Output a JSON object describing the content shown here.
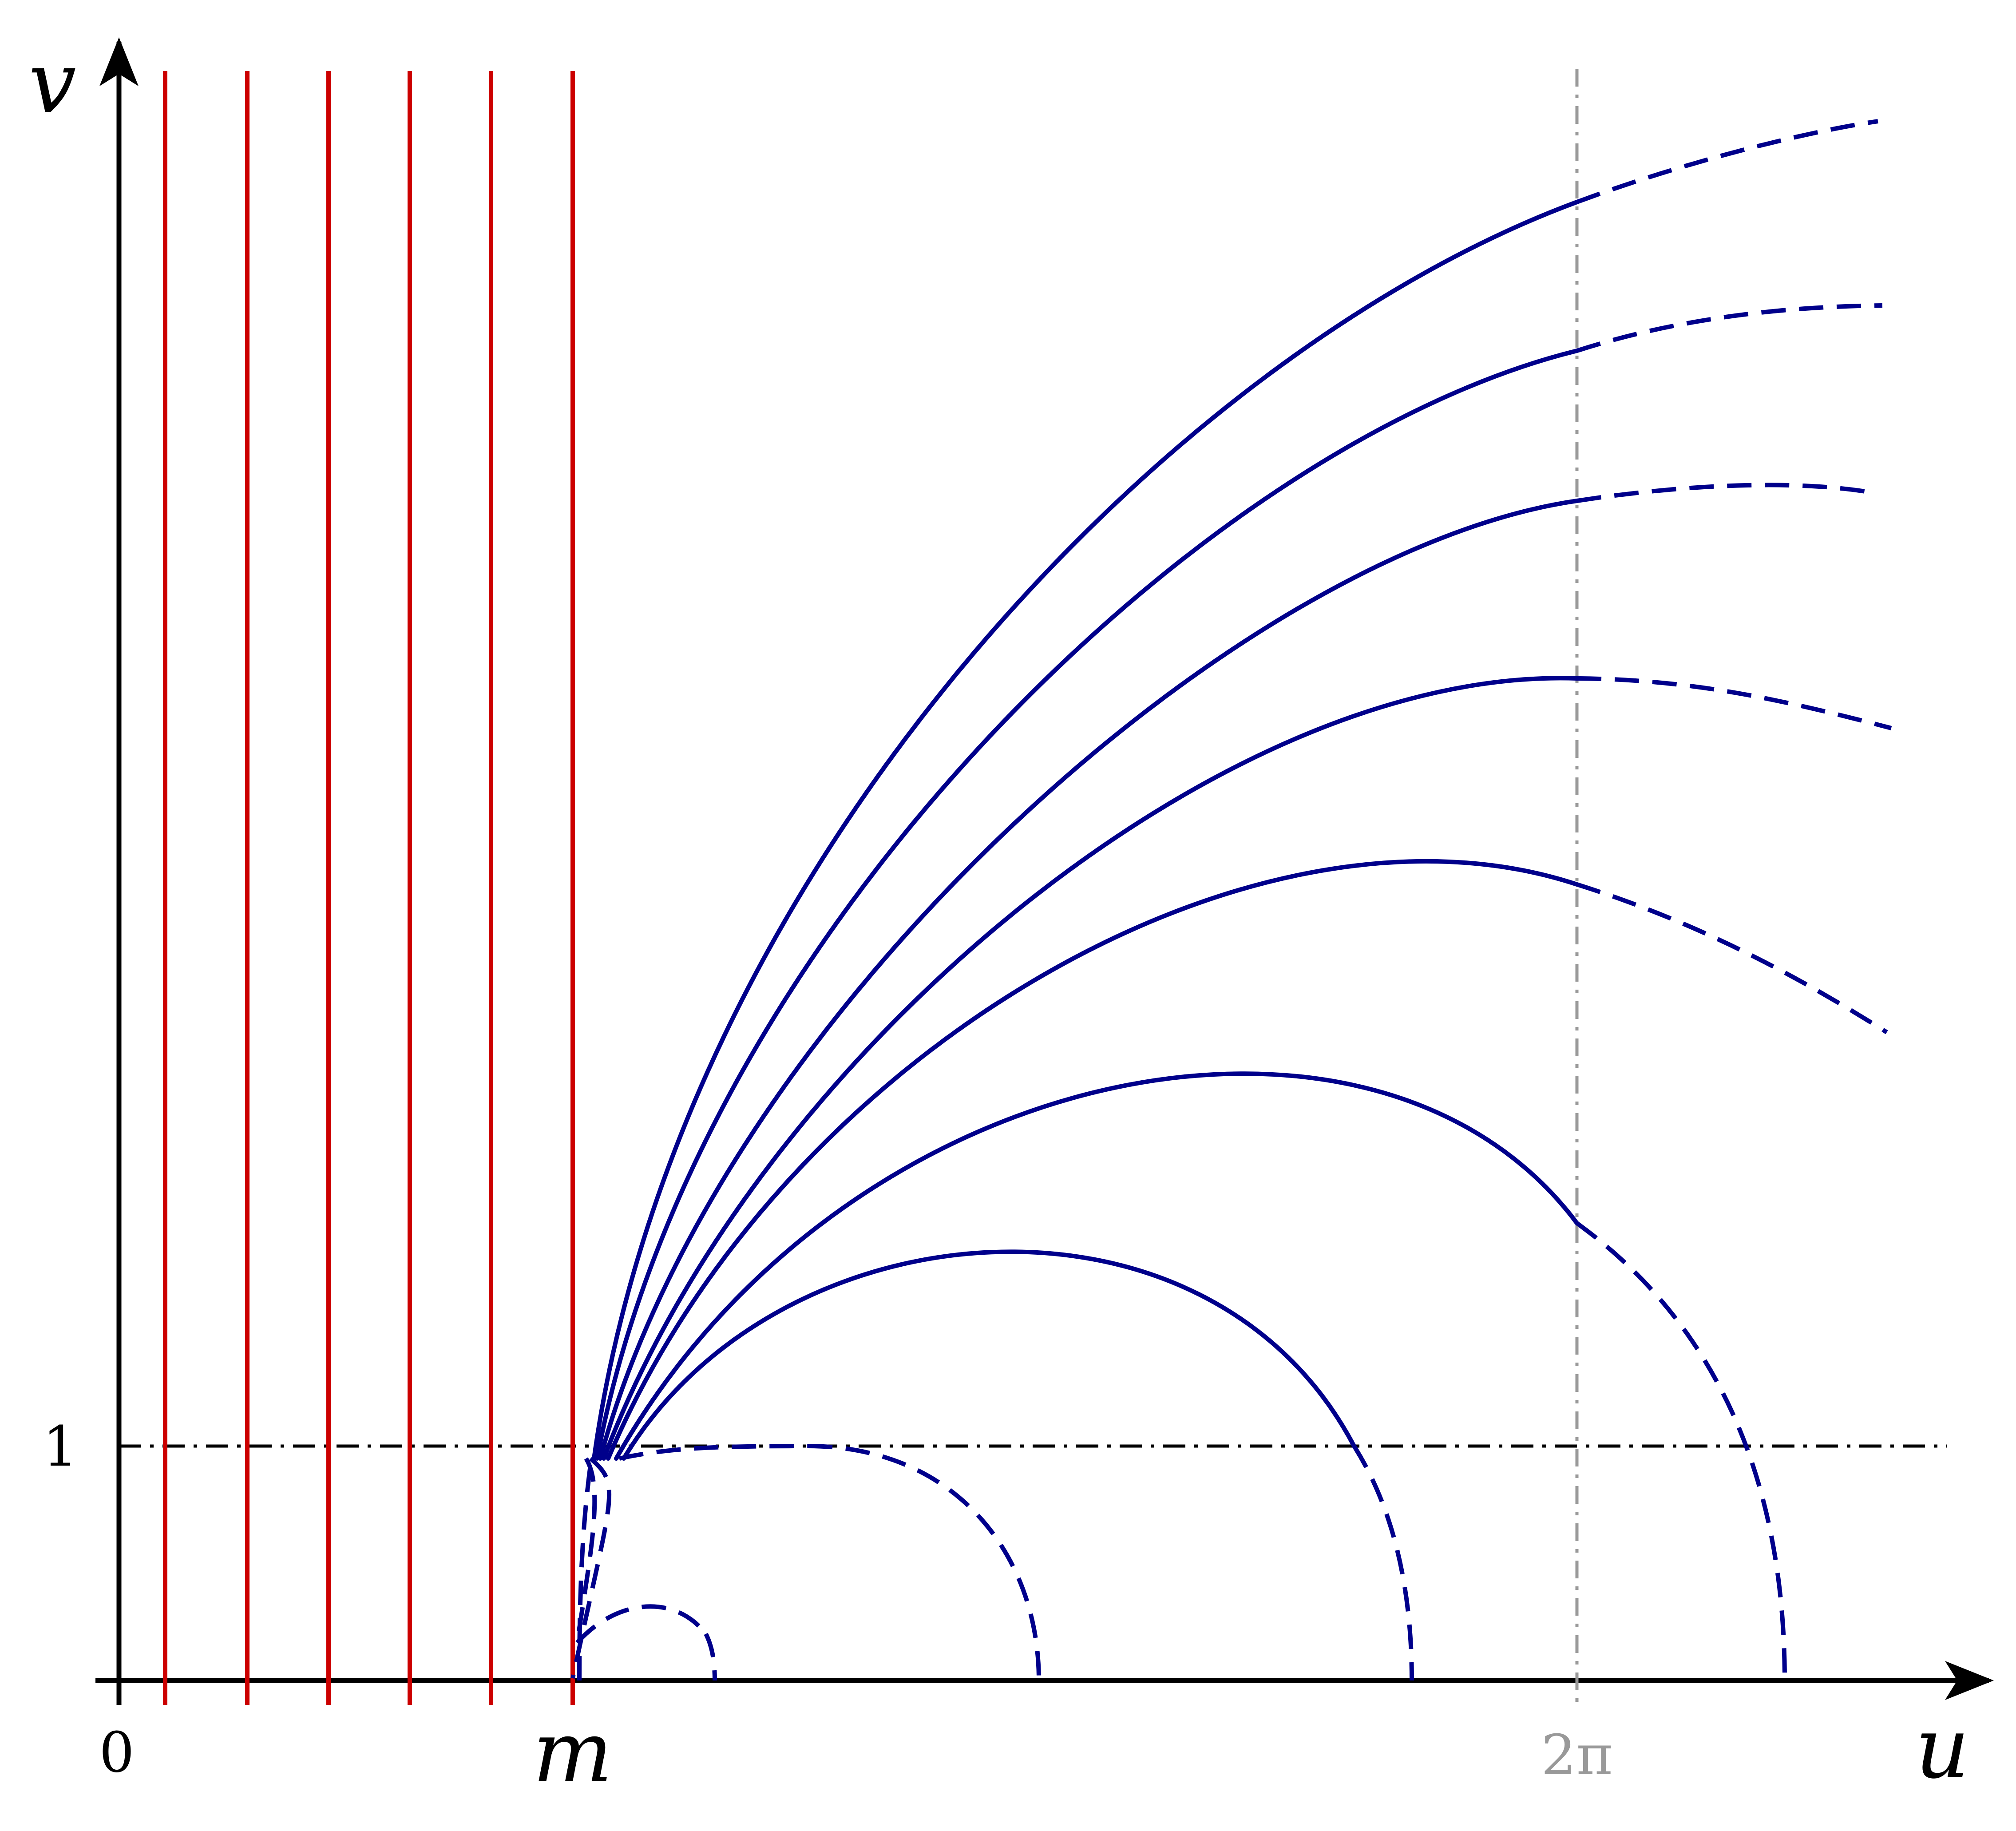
{
  "diagram": {
    "axis_labels": {
      "x": "u",
      "y": "v"
    },
    "tick_labels": {
      "origin": "0",
      "m": "m",
      "two_pi": "2π",
      "one": "1"
    },
    "colors": {
      "axis": "#000000",
      "red_lines": "#cc0000",
      "curves": "#00008b",
      "reference_line": "#000000",
      "two_pi_guide": "#999999",
      "two_pi_label": "#999999"
    },
    "red_lines_count": 6,
    "curves_count": 10
  }
}
